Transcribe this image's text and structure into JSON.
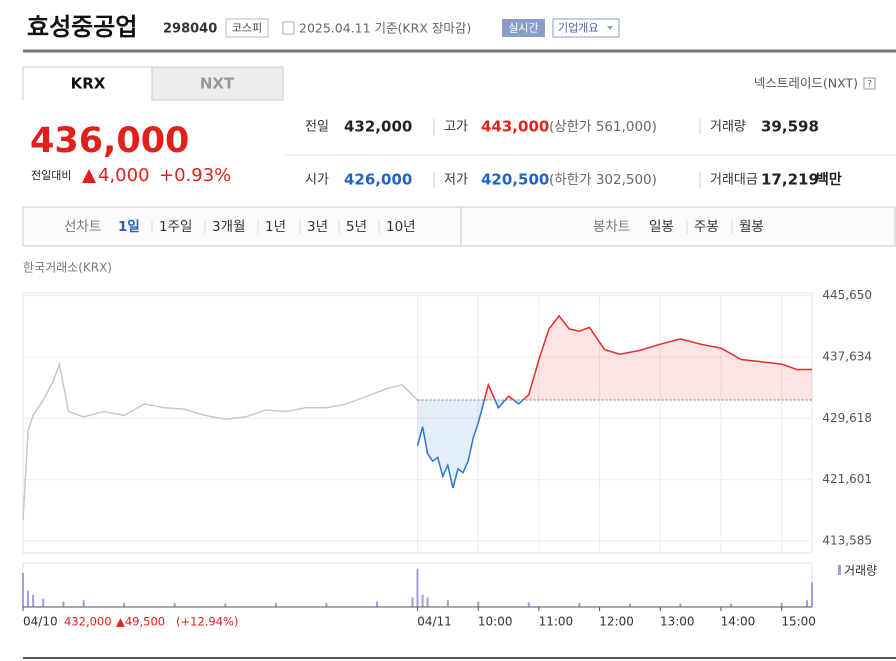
{
  "header": {
    "name": "효성중공업",
    "code": "298040",
    "market": "코스피",
    "date": "2025.04.11 기준(KRX 장마감)",
    "realtime": "실시간",
    "company_info": "기업개요"
  },
  "tabs": [
    "KRX",
    "NXT"
  ],
  "nxt_link": "넥스트레이드(NXT)",
  "quote": {
    "price": "436,000",
    "change_label": "전일대비",
    "change": "4,000",
    "rate": "+0.93%"
  },
  "stats": {
    "prev": {
      "label": "전일",
      "value": "432,000"
    },
    "high": {
      "label": "고가",
      "value": "443,000",
      "note": "(상한가 561,000)"
    },
    "volume": {
      "label": "거래량",
      "value": "39,598"
    },
    "open": {
      "label": "시가",
      "value": "426,000"
    },
    "low": {
      "label": "저가",
      "value": "420,500",
      "note": "(하한가 302,500)"
    },
    "amount": {
      "label": "거래대금",
      "value": "17,219",
      "unit": "백만"
    }
  },
  "periods": {
    "line_label": "선차트",
    "line": [
      "1일",
      "1주일",
      "3개월",
      "1년",
      "3년",
      "5년",
      "10년"
    ],
    "candle_label": "봉차트",
    "candle": [
      "일봉",
      "주봉",
      "월봉"
    ]
  },
  "chart_data": {
    "type": "line",
    "subtitle": "한국거래소(KRX)",
    "xlim": [
      0,
      780
    ],
    "xticks": [
      {
        "value": 0,
        "label": "04/10"
      },
      {
        "value": 390,
        "label": "04/11"
      },
      {
        "value": 450,
        "label": "10:00"
      },
      {
        "value": 510,
        "label": "11:00"
      },
      {
        "value": 570,
        "label": "12:00"
      },
      {
        "value": 630,
        "label": "13:00"
      },
      {
        "value": 690,
        "label": "14:00"
      },
      {
        "value": 750,
        "label": "15:00"
      }
    ],
    "ylim": [
      412000,
      446000
    ],
    "yticks": [
      {
        "value": 445650,
        "label": "445,650"
      },
      {
        "value": 437634,
        "label": "437,634"
      },
      {
        "value": 429618,
        "label": "429,618"
      },
      {
        "value": 421601,
        "label": "421,601"
      },
      {
        "value": 413585,
        "label": "413,585"
      }
    ],
    "grid": true,
    "baseline": 432000,
    "up_color": "#e52d2d",
    "down_color": "#2f73d5",
    "series": [
      {
        "color": "#c8c8c8",
        "x": [
          0,
          5,
          10,
          20,
          30,
          36,
          45,
          60,
          80,
          100,
          120,
          140,
          160,
          180,
          200,
          220,
          240,
          260,
          280,
          300,
          320,
          340,
          360,
          375,
          390
        ],
        "values": [
          416300,
          428000,
          430000,
          432000,
          434500,
          436700,
          430500,
          429800,
          430500,
          430000,
          431500,
          431000,
          430800,
          430000,
          429500,
          429800,
          430700,
          430500,
          431000,
          431000,
          431500,
          432500,
          433500,
          434000,
          432000
        ]
      },
      {
        "color": "split",
        "x": [
          390,
          395,
          400,
          405,
          410,
          415,
          420,
          425,
          430,
          435,
          440,
          445,
          450,
          455,
          460,
          465,
          470,
          480,
          490,
          500,
          510,
          520,
          530,
          540,
          550,
          560,
          575,
          590,
          610,
          630,
          650,
          670,
          690,
          710,
          730,
          750,
          765,
          780
        ],
        "values": [
          426000,
          428500,
          425000,
          424000,
          424500,
          422000,
          423500,
          420500,
          423000,
          422500,
          424000,
          427000,
          429000,
          431500,
          434000,
          432500,
          431000,
          432500,
          431500,
          432700,
          437300,
          441300,
          443000,
          441300,
          441000,
          441500,
          438600,
          438000,
          438500,
          439300,
          440000,
          439300,
          438800,
          437300,
          437000,
          436700,
          436000,
          436000
        ]
      }
    ],
    "volume": {
      "name": "거래량",
      "color": "#a59be0",
      "ylim": [
        0,
        3000
      ],
      "x": [
        0,
        5,
        10,
        20,
        40,
        60,
        100,
        150,
        200,
        250,
        300,
        350,
        385,
        390,
        395,
        400,
        420,
        450,
        500,
        550,
        600,
        650,
        700,
        750,
        775,
        780
      ],
      "values": [
        2500,
        1200,
        900,
        600,
        400,
        500,
        300,
        300,
        250,
        300,
        300,
        400,
        700,
        2800,
        900,
        700,
        500,
        400,
        350,
        300,
        250,
        250,
        250,
        300,
        500,
        1800
      ]
    }
  },
  "prev_day_summary": {
    "close": "432,000",
    "change": "▲49,500",
    "rate": "(+12.94%)"
  }
}
